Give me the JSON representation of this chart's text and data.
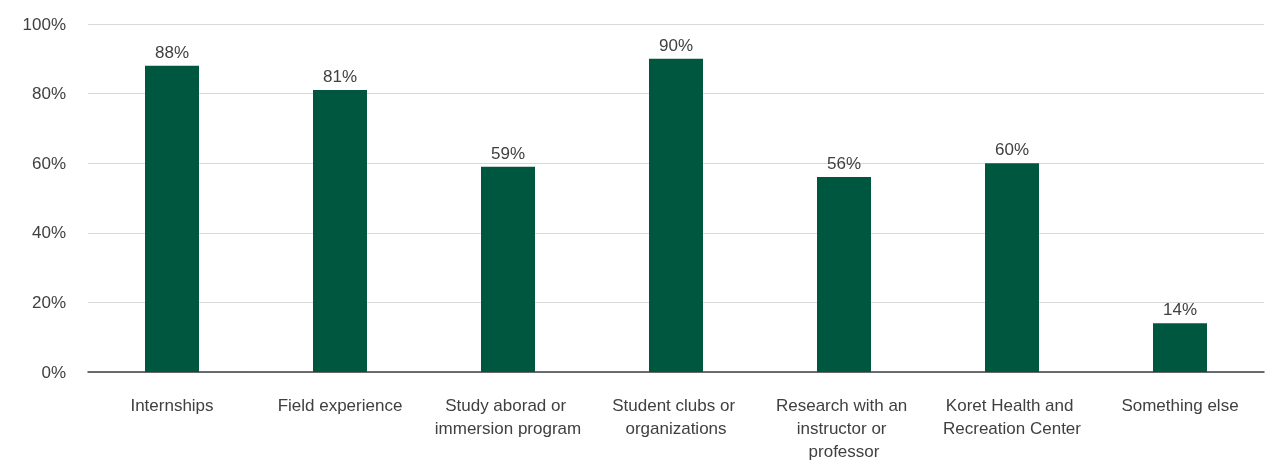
{
  "chart_data": {
    "type": "bar",
    "categories": [
      "Internships",
      "Field experience",
      "Study aborad or immersion program",
      "Student clubs or organizations",
      "Research with an instructor or professor",
      "Koret Health and Recreation Center",
      "Something else"
    ],
    "values": [
      88,
      81,
      59,
      90,
      56,
      60,
      14
    ],
    "value_labels": [
      "88%",
      "81%",
      "59%",
      "90%",
      "56%",
      "60%",
      "14%"
    ],
    "color": "#00573f",
    "ylim": [
      0,
      100
    ],
    "yticks": [
      {
        "value": 0,
        "label": "0%"
      },
      {
        "value": 20,
        "label": "20%"
      },
      {
        "value": 40,
        "label": "40%"
      },
      {
        "value": 60,
        "label": "60%"
      },
      {
        "value": 80,
        "label": "80%"
      },
      {
        "value": 100,
        "label": "100%"
      }
    ],
    "grid": "y"
  }
}
